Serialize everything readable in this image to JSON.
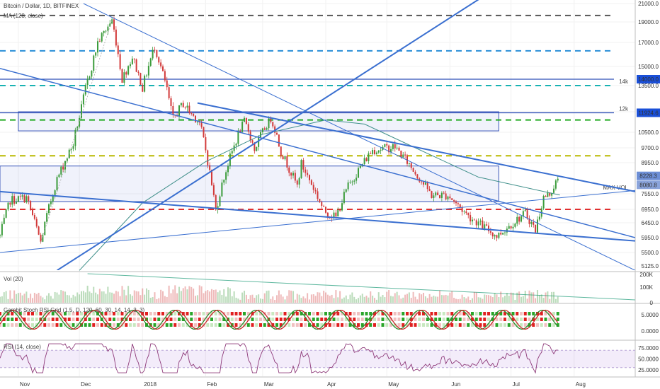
{
  "chart_data": {
    "type": "candlestick",
    "title": "Bitcoin / Dollar, 1D, BITFINEX",
    "indicator_label": "MA (128, close)",
    "price_axis": {
      "ticks": [
        "21000.0",
        "19000.0",
        "17000.0",
        "15000.0",
        "13500.0",
        "12000.0",
        "10500.0",
        "9700.0",
        "8950.0",
        "7550.0",
        "6950.0",
        "6450.0",
        "5950.0",
        "5500.0",
        "5125.0"
      ],
      "ylim": [
        5000,
        21000
      ]
    },
    "price_badges": [
      {
        "value": "14000.0",
        "color": "#1a4fd8"
      },
      {
        "value": "11924.6",
        "color": "#1a4fd8"
      },
      {
        "value": "8228.3",
        "color": "#6d8fd6"
      },
      {
        "value": "8080.8",
        "color": "#8aa4db"
      }
    ],
    "level_notes": [
      {
        "text": "14k",
        "price": 13500
      },
      {
        "text": "12k",
        "price": 11924.6
      },
      {
        "text": "MAX VOL",
        "price": 7650
      }
    ],
    "horizontal_levels": [
      {
        "price": 19700,
        "color": "#555555",
        "style": "dashed"
      },
      {
        "price": 16300,
        "color": "#2a8fd8",
        "style": "dashed"
      },
      {
        "price": 14000,
        "color": "#2d4fb8",
        "style": "solid"
      },
      {
        "price": 13500,
        "color": "#19b2b2",
        "style": "dashed"
      },
      {
        "price": 11924.6,
        "color": "#2d4fb8",
        "style": "solid"
      },
      {
        "price": 11400,
        "color": "#22aa22",
        "style": "dashed"
      },
      {
        "price": 9300,
        "color": "#b8b800",
        "style": "dashed"
      },
      {
        "price": 6950,
        "color": "#e03030",
        "style": "dashed"
      }
    ],
    "zones": [
      {
        "from": 10600,
        "to": 12000,
        "start": "2017-11-01",
        "end": "2018-06-25"
      },
      {
        "from": 7250,
        "to": 8800,
        "start": "2017-10-23",
        "end": "2018-06-25"
      }
    ],
    "trendlines": [
      {
        "p1": {
          "date": "2017-10-15",
          "price": 15200
        },
        "p2": {
          "date": "2018-08-31",
          "price": 5950
        },
        "width": 1.5
      },
      {
        "p1": {
          "date": "2017-10-23",
          "price": 7650
        },
        "p2": {
          "date": "2018-08-31",
          "price": 5850
        },
        "width": 2
      },
      {
        "p1": {
          "date": "2017-10-23",
          "price": 5500
        },
        "p2": {
          "date": "2018-08-31",
          "price": 7700
        },
        "width": 1
      },
      {
        "p1": {
          "date": "2017-11-20",
          "price": 5000
        },
        "p2": {
          "date": "2018-06-26",
          "price": 23000
        },
        "width": 2
      },
      {
        "p1": {
          "date": "2017-12-03",
          "price": 21000
        },
        "p2": {
          "date": "2018-08-31",
          "price": 5000
        },
        "width": 1
      },
      {
        "p1": {
          "date": "2018-01-28",
          "price": 12500
        },
        "p2": {
          "date": "2018-08-31",
          "price": 7650
        },
        "width": 2
      }
    ],
    "x_axis": {
      "range": [
        "2017-10-23",
        "2018-08-31"
      ],
      "ticks": [
        {
          "label": "Nov",
          "date": "2017-11-01"
        },
        {
          "label": "Dec",
          "date": "2017-12-01"
        },
        {
          "label": "2018",
          "date": "2018-01-01"
        },
        {
          "label": "Feb",
          "date": "2018-02-01"
        },
        {
          "label": "Mar",
          "date": "2018-03-01"
        },
        {
          "label": "Apr",
          "date": "2018-04-01"
        },
        {
          "label": "May",
          "date": "2018-05-01"
        },
        {
          "label": "Jun",
          "date": "2018-06-01"
        },
        {
          "label": "Jul",
          "date": "2018-07-01"
        },
        {
          "label": "Aug",
          "date": "2018-08-01"
        }
      ]
    },
    "series": [
      {
        "name": "Price",
        "anchors": [
          {
            "date": "2017-10-23",
            "close": 6000
          },
          {
            "date": "2017-10-28",
            "close": 7300
          },
          {
            "date": "2017-11-05",
            "close": 7400
          },
          {
            "date": "2017-11-12",
            "close": 5800
          },
          {
            "date": "2017-11-20",
            "close": 8200
          },
          {
            "date": "2017-11-28",
            "close": 9900
          },
          {
            "date": "2017-12-07",
            "close": 15000
          },
          {
            "date": "2017-12-10",
            "close": 17000
          },
          {
            "date": "2017-12-17",
            "close": 19200
          },
          {
            "date": "2017-12-22",
            "close": 14000
          },
          {
            "date": "2017-12-27",
            "close": 15800
          },
          {
            "date": "2018-01-01",
            "close": 13400
          },
          {
            "date": "2018-01-07",
            "close": 16700
          },
          {
            "date": "2018-01-16",
            "close": 11500
          },
          {
            "date": "2018-01-21",
            "close": 12500
          },
          {
            "date": "2018-01-29",
            "close": 11200
          },
          {
            "date": "2018-02-06",
            "close": 6900
          },
          {
            "date": "2018-02-10",
            "close": 8300
          },
          {
            "date": "2018-02-20",
            "close": 11300
          },
          {
            "date": "2018-02-25",
            "close": 9600
          },
          {
            "date": "2018-03-05",
            "close": 11500
          },
          {
            "date": "2018-03-10",
            "close": 9500
          },
          {
            "date": "2018-03-18",
            "close": 7900
          },
          {
            "date": "2018-03-20",
            "close": 8900
          },
          {
            "date": "2018-03-31",
            "close": 6900
          },
          {
            "date": "2018-04-06",
            "close": 6650
          },
          {
            "date": "2018-04-12",
            "close": 7900
          },
          {
            "date": "2018-04-24",
            "close": 9600
          },
          {
            "date": "2018-05-05",
            "close": 9750
          },
          {
            "date": "2018-05-15",
            "close": 8500
          },
          {
            "date": "2018-05-23",
            "close": 7500
          },
          {
            "date": "2018-05-31",
            "close": 7500
          },
          {
            "date": "2018-06-10",
            "close": 6700
          },
          {
            "date": "2018-06-24",
            "close": 6000
          },
          {
            "date": "2018-07-08",
            "close": 6800
          },
          {
            "date": "2018-07-13",
            "close": 6200
          },
          {
            "date": "2018-07-17",
            "close": 7400
          },
          {
            "date": "2018-07-20",
            "close": 7550
          },
          {
            "date": "2018-07-24",
            "close": 8228.3
          }
        ]
      },
      {
        "name": "MA (128, close)",
        "anchors": [
          {
            "date": "2017-12-01",
            "value": 5000
          },
          {
            "date": "2018-01-01",
            "value": 7200
          },
          {
            "date": "2018-02-01",
            "value": 9000
          },
          {
            "date": "2018-03-01",
            "value": 10400
          },
          {
            "date": "2018-04-01",
            "value": 11400
          },
          {
            "date": "2018-04-20",
            "value": 11100
          },
          {
            "date": "2018-05-15",
            "value": 9700
          },
          {
            "date": "2018-06-15",
            "value": 8300
          },
          {
            "date": "2018-07-25",
            "value": 7500
          }
        ]
      }
    ],
    "volume_panel": {
      "label": "Vol (20)",
      "ticks": [
        "200K",
        "100K",
        "0"
      ]
    },
    "stoch_panel": {
      "label": "Gambit Stoch RSI Grid (1.5, D, 120, 60, 30, 14, 14, 3, 3)",
      "ticks": [
        "5.0000",
        "0.0000"
      ]
    },
    "rsi_panel": {
      "label": "RSI (14, close)",
      "ticks": [
        "75.0000",
        "50.0000",
        "25.0000"
      ],
      "ylim": [
        10,
        90
      ]
    }
  }
}
